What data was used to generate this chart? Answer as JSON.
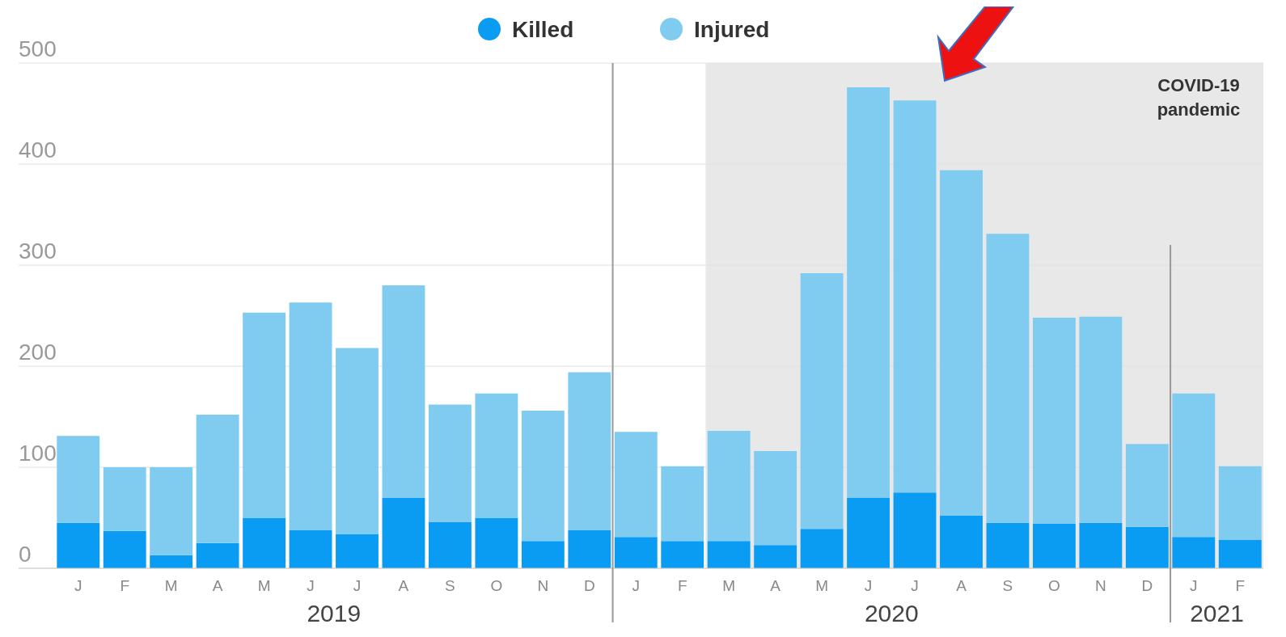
{
  "chart_data": {
    "type": "bar",
    "stacked": true,
    "categories": [
      "J",
      "F",
      "M",
      "A",
      "M",
      "J",
      "J",
      "A",
      "S",
      "O",
      "N",
      "D",
      "J",
      "F",
      "M",
      "A",
      "M",
      "J",
      "J",
      "A",
      "S",
      "O",
      "N",
      "D",
      "J",
      "F"
    ],
    "series": [
      {
        "name": "Killed",
        "color": "#0a9cf2",
        "values": [
          45,
          37,
          13,
          25,
          50,
          38,
          34,
          70,
          46,
          50,
          27,
          38,
          31,
          27,
          27,
          23,
          39,
          70,
          75,
          52,
          45,
          44,
          45,
          41,
          31,
          28
        ]
      },
      {
        "name": "Injured",
        "color": "#80cbf0",
        "values": [
          86,
          63,
          87,
          127,
          203,
          225,
          184,
          210,
          116,
          123,
          129,
          156,
          104,
          74,
          109,
          93,
          253,
          406,
          388,
          342,
          286,
          204,
          204,
          82,
          142,
          73
        ]
      }
    ],
    "ylim": [
      0,
      500
    ],
    "yticks": [
      0,
      100,
      200,
      300,
      400,
      500
    ],
    "grid": "y",
    "legend": "top",
    "annotations": [
      "2019",
      "2020",
      "2021",
      "COVID-19 pandemic"
    ]
  }
}
